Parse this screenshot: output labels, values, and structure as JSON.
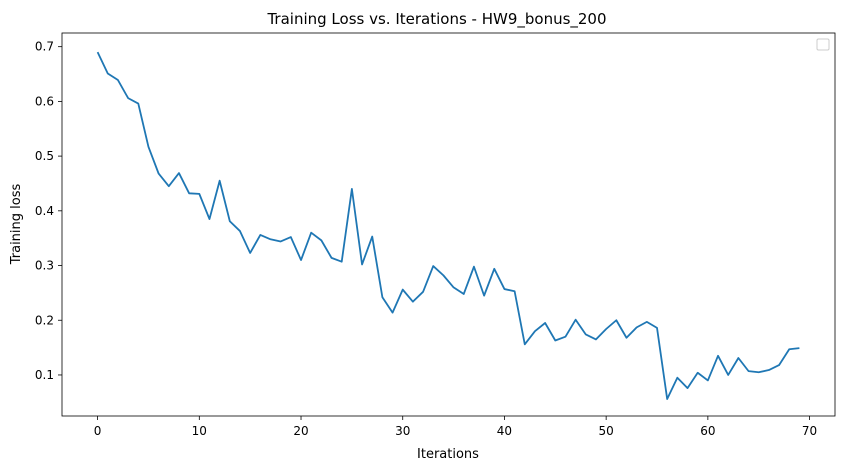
{
  "chart_data": {
    "type": "line",
    "title": "Training Loss vs. Iterations - HW9_bonus_200",
    "xlabel": "Iterations",
    "ylabel": "Training loss",
    "xlim": [
      -3.5,
      72.5
    ],
    "ylim": [
      0.025,
      0.725
    ],
    "xticks": [
      0,
      10,
      20,
      30,
      40,
      50,
      60,
      70
    ],
    "yticks": [
      0.1,
      0.2,
      0.3,
      0.4,
      0.5,
      0.6,
      0.7
    ],
    "grid": false,
    "legend": {
      "location": "upper right",
      "entries": []
    },
    "series": [
      {
        "color": "#1f77b4",
        "x": [
          0,
          1,
          2,
          3,
          4,
          5,
          6,
          7,
          8,
          9,
          10,
          11,
          12,
          13,
          14,
          15,
          16,
          17,
          18,
          19,
          20,
          21,
          22,
          23,
          24,
          25,
          26,
          27,
          28,
          29,
          30,
          31,
          32,
          33,
          34,
          35,
          36,
          37,
          38,
          39,
          40,
          41,
          42,
          43,
          44,
          45,
          46,
          47,
          48,
          49,
          50,
          51,
          52,
          53,
          54,
          55,
          56,
          57,
          58,
          59,
          60,
          61,
          62,
          63,
          64,
          65,
          66,
          67,
          68,
          69
        ],
        "y": [
          0.69,
          0.651,
          0.639,
          0.606,
          0.596,
          0.517,
          0.468,
          0.445,
          0.469,
          0.432,
          0.431,
          0.385,
          0.455,
          0.381,
          0.363,
          0.323,
          0.356,
          0.348,
          0.344,
          0.352,
          0.31,
          0.36,
          0.346,
          0.314,
          0.307,
          0.44,
          0.302,
          0.353,
          0.242,
          0.214,
          0.256,
          0.234,
          0.252,
          0.299,
          0.282,
          0.26,
          0.248,
          0.298,
          0.245,
          0.294,
          0.257,
          0.253,
          0.156,
          0.18,
          0.195,
          0.163,
          0.17,
          0.201,
          0.174,
          0.165,
          0.184,
          0.2,
          0.168,
          0.187,
          0.197,
          0.186,
          0.056,
          0.095,
          0.076,
          0.104,
          0.09,
          0.135,
          0.1,
          0.131,
          0.107,
          0.105,
          0.109,
          0.118,
          0.147,
          0.149
        ]
      }
    ]
  }
}
